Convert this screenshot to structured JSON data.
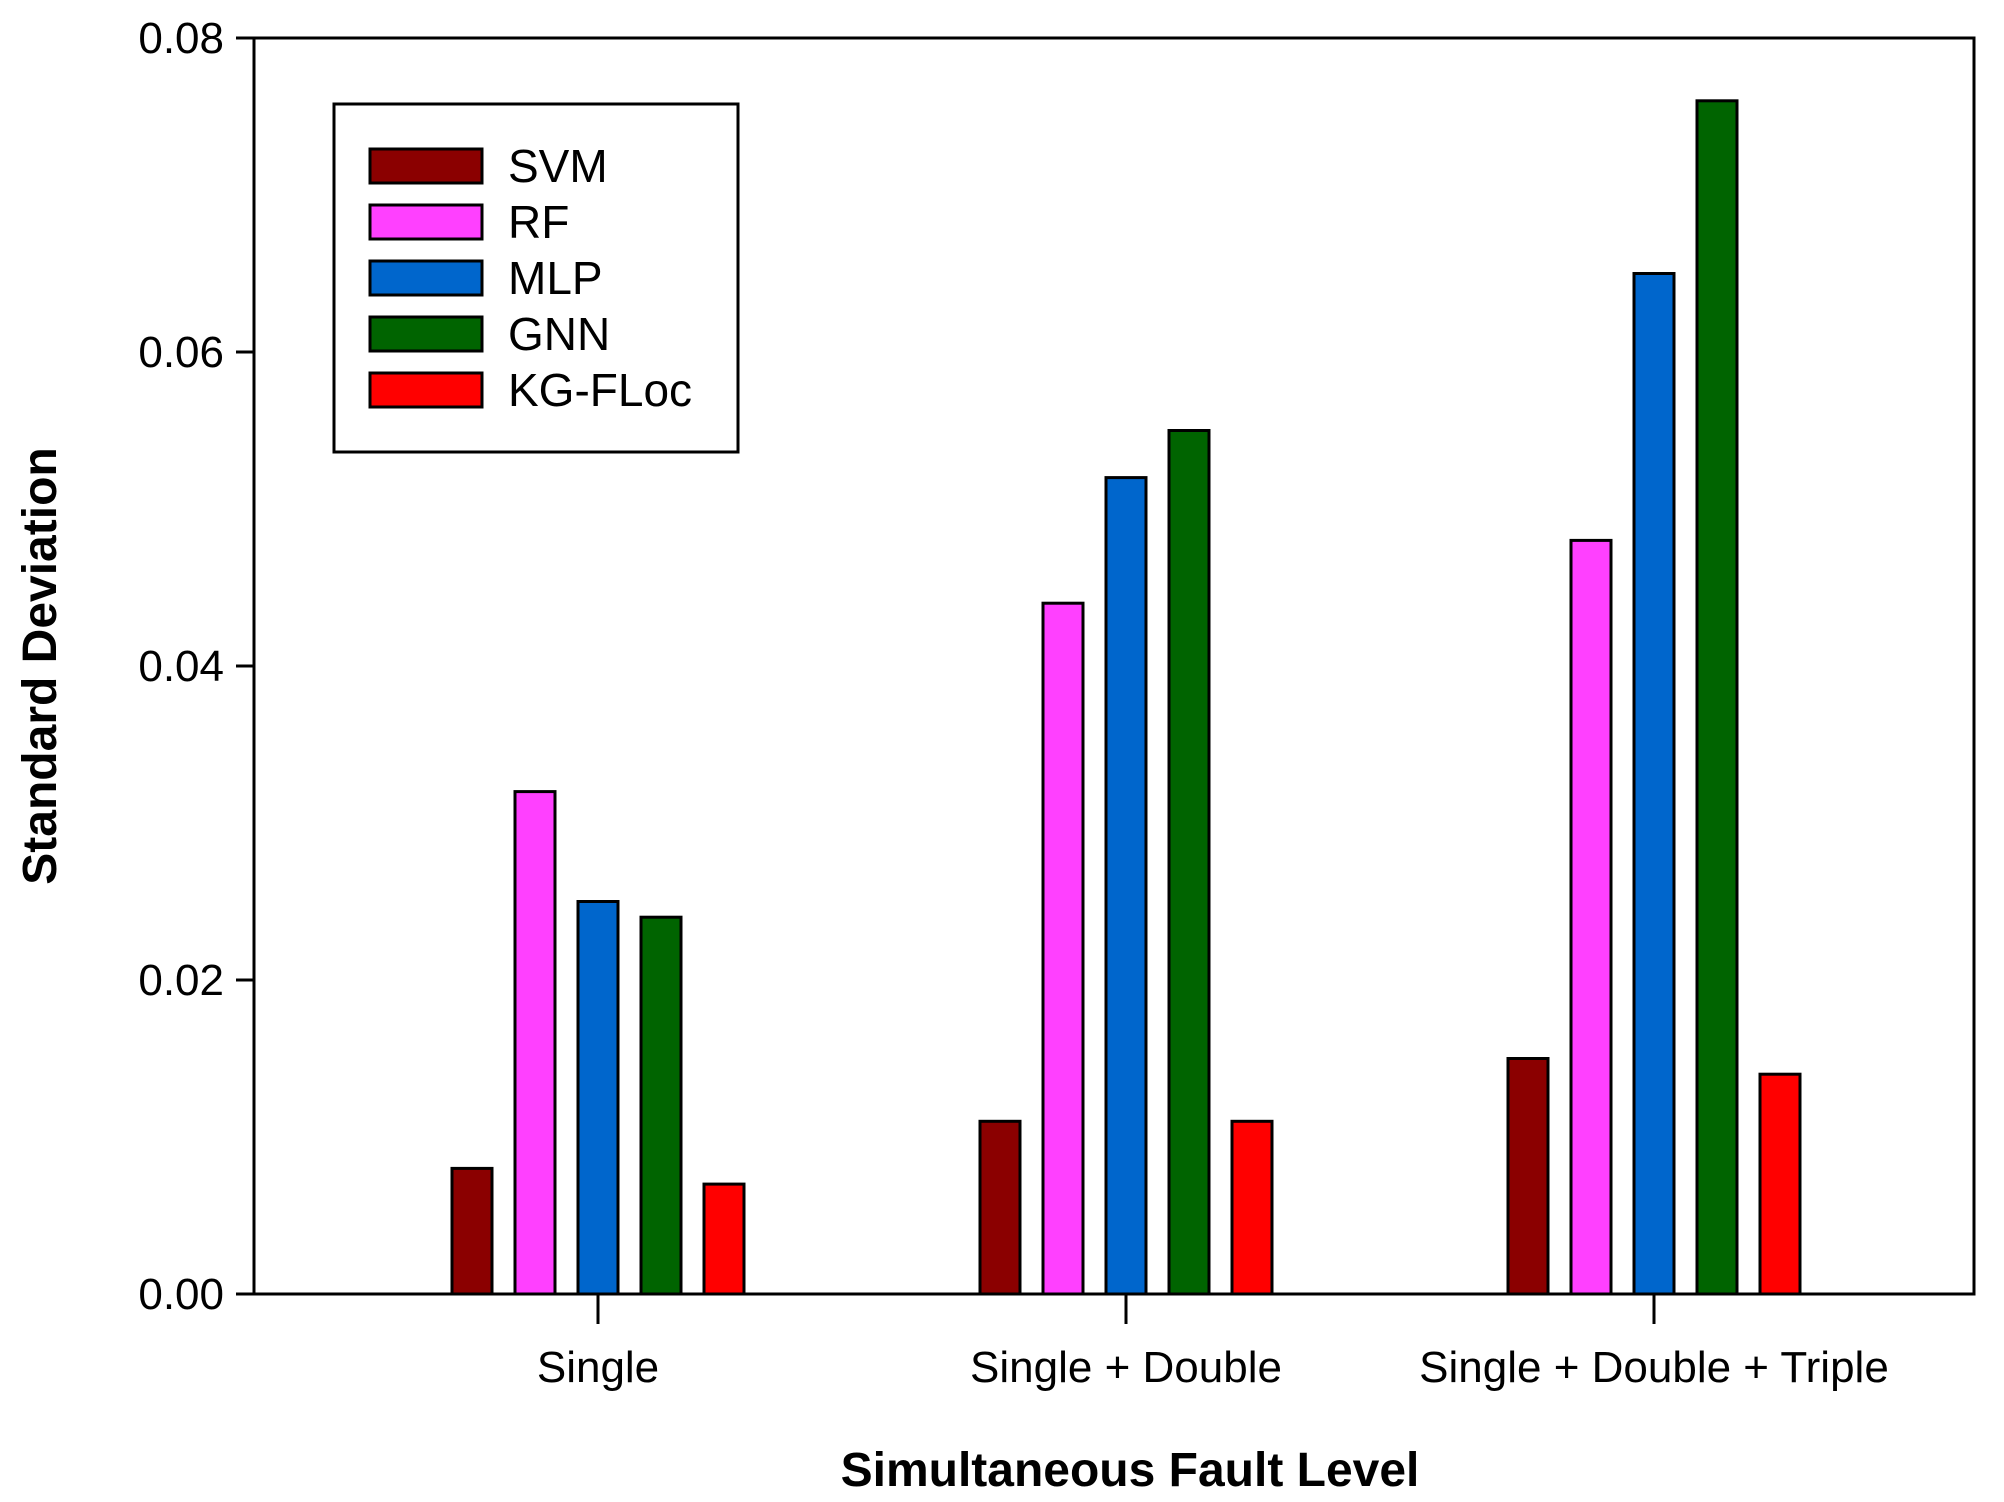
{
  "chart_data": {
    "type": "bar",
    "xlabel": "Simultaneous Fault Level",
    "ylabel": "Standard Deviation",
    "ylim": [
      0,
      0.08
    ],
    "yticks": [
      "0.00",
      "0.02",
      "0.04",
      "0.06",
      "0.08"
    ],
    "grid": false,
    "legend_position": "top-left",
    "categories": [
      "Single",
      "Single + Double",
      "Single + Double + Triple"
    ],
    "series": [
      {
        "name": "SVM",
        "color": "#8b0000",
        "values": [
          0.008,
          0.011,
          0.015
        ]
      },
      {
        "name": "RF",
        "color": "#ff40ff",
        "values": [
          0.032,
          0.044,
          0.048
        ]
      },
      {
        "name": "MLP",
        "color": "#0066cc",
        "values": [
          0.025,
          0.052,
          0.065
        ]
      },
      {
        "name": "GNN",
        "color": "#006400",
        "values": [
          0.024,
          0.055,
          0.076
        ]
      },
      {
        "name": "KG-FLoc",
        "color": "#ff0000",
        "values": [
          0.007,
          0.011,
          0.014
        ]
      }
    ]
  }
}
